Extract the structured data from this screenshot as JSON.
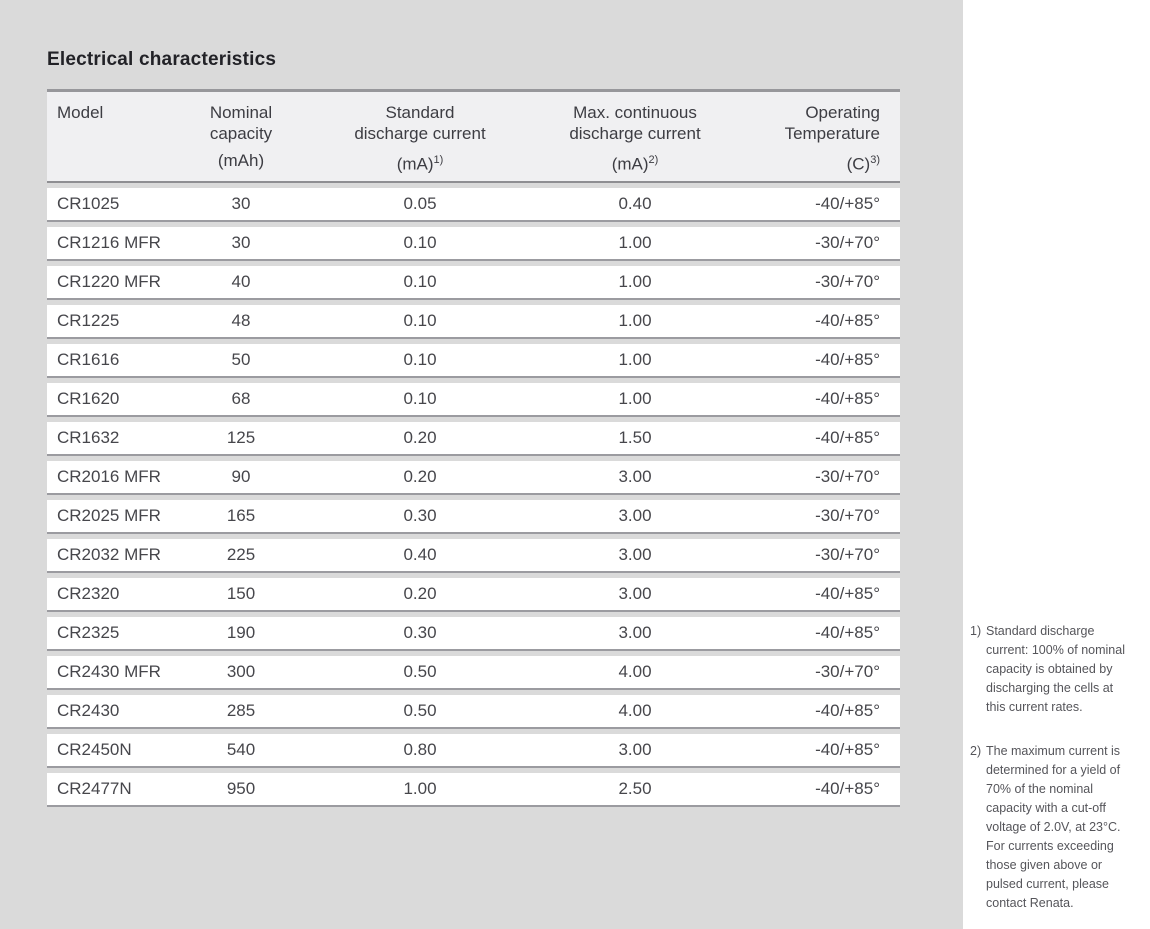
{
  "page": {
    "title": "Electrical characteristics"
  },
  "colors": {
    "page_background": "#dadada",
    "right_margin_background": "#ffffff",
    "table_header_background": "#f0f0f2",
    "table_row_background": "#ffffff",
    "table_border": "#8e8e92",
    "text": "#46464b"
  },
  "table": {
    "columns": [
      {
        "key": "model",
        "label": "Model",
        "unit": "",
        "sup": ""
      },
      {
        "key": "nominal-capacity",
        "label": "Nominal\ncapacity",
        "unit": "(mAh)",
        "sup": ""
      },
      {
        "key": "standard-discharge-current",
        "label": "Standard\ndischarge current",
        "unit": "(mA)",
        "sup": "1)"
      },
      {
        "key": "max-continuous-discharge-current",
        "label": "Max. continuous\ndischarge current",
        "unit": "(mA)",
        "sup": "2)"
      },
      {
        "key": "operating-temperature",
        "label": "Operating\nTemperature",
        "unit": "(C)",
        "sup": "3)"
      }
    ],
    "rows": [
      [
        "CR1025",
        "30",
        "0.05",
        "0.40",
        "-40/+85°"
      ],
      [
        "CR1216 MFR",
        "30",
        "0.10",
        "1.00",
        "-30/+70°"
      ],
      [
        "CR1220 MFR",
        "40",
        "0.10",
        "1.00",
        "-30/+70°"
      ],
      [
        "CR1225",
        "48",
        "0.10",
        "1.00",
        "-40/+85°"
      ],
      [
        "CR1616",
        "50",
        "0.10",
        "1.00",
        "-40/+85°"
      ],
      [
        "CR1620",
        "68",
        "0.10",
        "1.00",
        "-40/+85°"
      ],
      [
        "CR1632",
        "125",
        "0.20",
        "1.50",
        "-40/+85°"
      ],
      [
        "CR2016 MFR",
        "90",
        "0.20",
        "3.00",
        "-30/+70°"
      ],
      [
        "CR2025 MFR",
        "165",
        "0.30",
        "3.00",
        "-30/+70°"
      ],
      [
        "CR2032 MFR",
        "225",
        "0.40",
        "3.00",
        "-30/+70°"
      ],
      [
        "CR2320",
        "150",
        "0.20",
        "3.00",
        "-40/+85°"
      ],
      [
        "CR2325",
        "190",
        "0.30",
        "3.00",
        "-40/+85°"
      ],
      [
        "CR2430 MFR",
        "300",
        "0.50",
        "4.00",
        "-30/+70°"
      ],
      [
        "CR2430",
        "285",
        "0.50",
        "4.00",
        "-40/+85°"
      ],
      [
        "CR2450N",
        "540",
        "0.80",
        "3.00",
        "-40/+85°"
      ],
      [
        "CR2477N",
        "950",
        "1.00",
        "2.50",
        "-40/+85°"
      ]
    ]
  },
  "footnotes": [
    {
      "marker": "1)",
      "lines": [
        "Standard discharge",
        "current: 100% of nominal",
        "capacity is obtained by",
        "discharging the cells at",
        "this current rates."
      ]
    },
    {
      "marker": "2)",
      "lines": [
        "The maximum current is",
        "determined for a yield of",
        "70% of the nominal",
        "capacity with a cut-off",
        "voltage of 2.0V, at 23°C.",
        "For currents exceeding",
        "those given above or",
        "pulsed current, please",
        "contact Renata."
      ]
    }
  ]
}
